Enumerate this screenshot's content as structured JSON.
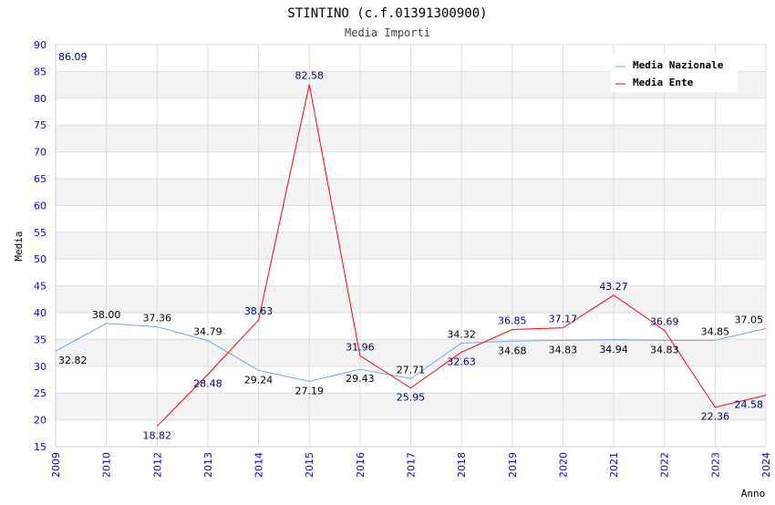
{
  "chart_data": {
    "type": "line",
    "title": "STINTINO (c.f.01391300900)",
    "subtitle": "Media Importi",
    "xlabel": "Anno",
    "ylabel": "Media",
    "ylim": [
      15,
      90
    ],
    "yticks": [
      15,
      20,
      25,
      30,
      35,
      40,
      45,
      50,
      55,
      60,
      65,
      70,
      75,
      80,
      85,
      90
    ],
    "categories": [
      "2009",
      "2010",
      "2012",
      "2013",
      "2014",
      "2015",
      "2016",
      "2017",
      "2018",
      "2019",
      "2020",
      "2021",
      "2022",
      "2023",
      "2024"
    ],
    "legend_position": "top-right",
    "series": [
      {
        "name": "Media Nazionale",
        "color": "#6aa8f0",
        "label_color": "#000000",
        "values": [
          32.82,
          38.0,
          37.36,
          34.79,
          29.24,
          27.19,
          29.43,
          27.71,
          34.32,
          34.68,
          34.83,
          34.94,
          34.83,
          34.85,
          37.05
        ]
      },
      {
        "name": "Media Ente",
        "color": "#ff0000",
        "label_color": "#00008b",
        "values": [
          86.09,
          null,
          18.82,
          28.48,
          38.63,
          82.58,
          31.96,
          25.95,
          32.63,
          36.85,
          37.17,
          43.27,
          36.69,
          22.36,
          24.58
        ]
      }
    ]
  }
}
